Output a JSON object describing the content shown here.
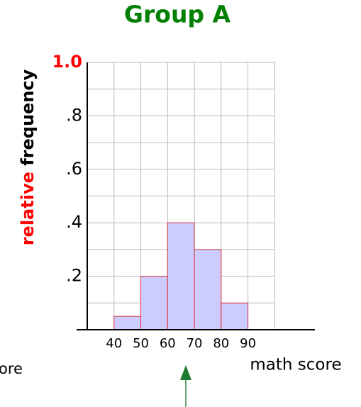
{
  "chart_data": {
    "type": "histogram",
    "title": "Group A",
    "ylabel": [
      "relative",
      "frequency"
    ],
    "xlabel": "math score",
    "annotation": "ore",
    "bins": [
      40,
      50,
      60,
      70,
      80,
      90
    ],
    "values": [
      0.05,
      0.2,
      0.4,
      0.3,
      0.1
    ],
    "color": "#ccccff",
    "edgecolor": "#e0303a",
    "xlim": [
      30,
      115
    ],
    "ylim": [
      0,
      1
    ],
    "xticks": [
      40,
      50,
      60,
      70,
      80,
      90
    ],
    "minor_xticks": [
      100
    ],
    "yticks": [
      {
        "value": 0.2,
        "label": ".2"
      },
      {
        "value": 0.4,
        "label": ".4"
      },
      {
        "value": 0.6,
        "label": ".6"
      },
      {
        "value": 0.8,
        "label": ".8"
      },
      {
        "value": 1,
        "label": "1.0",
        "color": "#ff0000"
      }
    ],
    "minor_yticks": [
      0.1,
      0.3,
      0.5,
      0.7,
      0.9
    ],
    "grid": true
  }
}
